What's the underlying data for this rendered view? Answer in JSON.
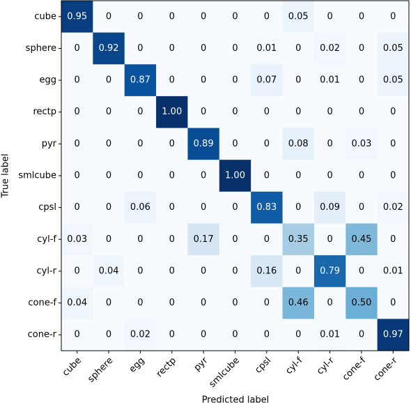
{
  "chart_data": {
    "type": "heatmap",
    "x_label": "Predicted label",
    "y_label": "True label",
    "categories": [
      "cube",
      "sphere",
      "egg",
      "rectp",
      "pyr",
      "smlcube",
      "cpsl",
      "cyl-f",
      "cyl-r",
      "cone-f",
      "cone-r"
    ],
    "colormap": "Blues",
    "clim": [
      0,
      1
    ],
    "values": [
      [
        0.95,
        0,
        0,
        0,
        0,
        0,
        0,
        0.05,
        0,
        0,
        0
      ],
      [
        0,
        0.92,
        0,
        0,
        0,
        0,
        0.01,
        0,
        0.02,
        0,
        0.05
      ],
      [
        0,
        0,
        0.87,
        0,
        0,
        0,
        0.07,
        0,
        0.01,
        0,
        0.05
      ],
      [
        0,
        0,
        0,
        1,
        0,
        0,
        0,
        0,
        0,
        0,
        0
      ],
      [
        0,
        0,
        0,
        0,
        0.89,
        0,
        0,
        0.08,
        0,
        0.03,
        0
      ],
      [
        0,
        0,
        0,
        0,
        0,
        1,
        0,
        0,
        0,
        0,
        0
      ],
      [
        0,
        0,
        0.06,
        0,
        0,
        0,
        0.83,
        0,
        0.09,
        0,
        0.02
      ],
      [
        0.03,
        0,
        0,
        0,
        0.17,
        0,
        0,
        0.35,
        0,
        0.45,
        0
      ],
      [
        0,
        0.04,
        0,
        0,
        0,
        0,
        0.16,
        0,
        0.79,
        0,
        0.01
      ],
      [
        0.04,
        0,
        0,
        0,
        0,
        0,
        0,
        0.46,
        0,
        0.5,
        0
      ],
      [
        0,
        0,
        0.02,
        0,
        0,
        0,
        0,
        0,
        0.01,
        0,
        0.97
      ]
    ],
    "value_labels": [
      [
        "0.95",
        "0",
        "0",
        "0",
        "0",
        "0",
        "0",
        "0.05",
        "0",
        "0",
        "0"
      ],
      [
        "0",
        "0.92",
        "0",
        "0",
        "0",
        "0",
        "0.01",
        "0",
        "0.02",
        "0",
        "0.05"
      ],
      [
        "0",
        "0",
        "0.87",
        "0",
        "0",
        "0",
        "0.07",
        "0",
        "0.01",
        "0",
        "0.05"
      ],
      [
        "0",
        "0",
        "0",
        "1.00",
        "0",
        "0",
        "0",
        "0",
        "0",
        "0",
        "0"
      ],
      [
        "0",
        "0",
        "0",
        "0",
        "0.89",
        "0",
        "0",
        "0.08",
        "0",
        "0.03",
        "0"
      ],
      [
        "0",
        "0",
        "0",
        "0",
        "0",
        "1.00",
        "0",
        "0",
        "0",
        "0",
        "0"
      ],
      [
        "0",
        "0",
        "0.06",
        "0",
        "0",
        "0",
        "0.83",
        "0",
        "0.09",
        "0",
        "0.02"
      ],
      [
        "0.03",
        "0",
        "0",
        "0",
        "0.17",
        "0",
        "0",
        "0.35",
        "0",
        "0.45",
        "0"
      ],
      [
        "0",
        "0.04",
        "0",
        "0",
        "0",
        "0",
        "0.16",
        "0",
        "0.79",
        "0",
        "0.01"
      ],
      [
        "0.04",
        "0",
        "0",
        "0",
        "0",
        "0",
        "0",
        "0.46",
        "0",
        "0.50",
        "0"
      ],
      [
        "0",
        "0",
        "0.02",
        "0",
        "0",
        "0",
        "0",
        "0",
        "0.01",
        "0",
        "0.97"
      ]
    ]
  }
}
